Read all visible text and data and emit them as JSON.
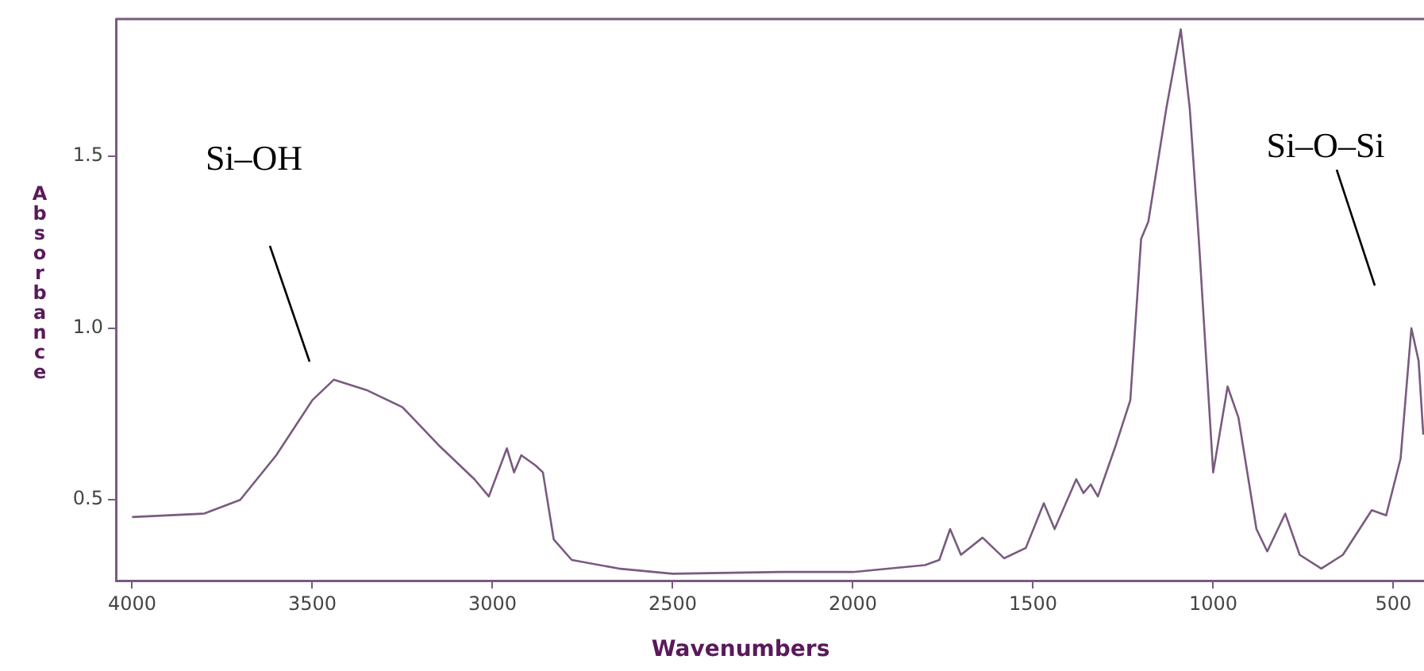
{
  "chart_data": {
    "type": "line",
    "xlabel": "Wavenumbers",
    "ylabel": "Absorbance",
    "x": [
      4000,
      3800,
      3700,
      3600,
      3500,
      3440,
      3350,
      3250,
      3150,
      3050,
      3010,
      2960,
      2940,
      2920,
      2880,
      2860,
      2830,
      2780,
      2650,
      2500,
      2200,
      2000,
      1800,
      1760,
      1730,
      1700,
      1640,
      1580,
      1520,
      1470,
      1440,
      1380,
      1360,
      1340,
      1320,
      1270,
      1230,
      1200,
      1180,
      1130,
      1090,
      1065,
      1040,
      1000,
      960,
      930,
      880,
      850,
      800,
      760,
      700,
      640,
      560,
      520,
      480,
      450,
      430,
      417
    ],
    "series": [
      {
        "color": "#7a5a80",
        "values": [
          0.45,
          0.46,
          0.5,
          0.63,
          0.79,
          0.85,
          0.82,
          0.77,
          0.66,
          0.56,
          0.51,
          0.65,
          0.58,
          0.63,
          0.6,
          0.58,
          0.385,
          0.325,
          0.3,
          0.285,
          0.29,
          0.29,
          0.31,
          0.325,
          0.415,
          0.34,
          0.39,
          0.33,
          0.36,
          0.49,
          0.415,
          0.56,
          0.52,
          0.545,
          0.51,
          0.66,
          0.79,
          1.26,
          1.31,
          1.64,
          1.87,
          1.64,
          1.26,
          0.58,
          0.83,
          0.74,
          0.415,
          0.35,
          0.46,
          0.34,
          0.3,
          0.34,
          0.47,
          0.455,
          0.62,
          1.0,
          0.905,
          0.69
        ]
      }
    ],
    "xlim": [
      4045,
      415
    ],
    "ylim": [
      0.265,
      1.9
    ],
    "xticks": [
      4000,
      3500,
      3000,
      2500,
      2000,
      1500,
      1000,
      500
    ],
    "yticks": [
      0.5,
      {
        "value": 1,
        "label": "1.0"
      },
      1.5
    ],
    "annotations": [
      "Si–OH",
      "Si–O–Si"
    ],
    "marker": "none",
    "grid": false,
    "legend": false
  }
}
